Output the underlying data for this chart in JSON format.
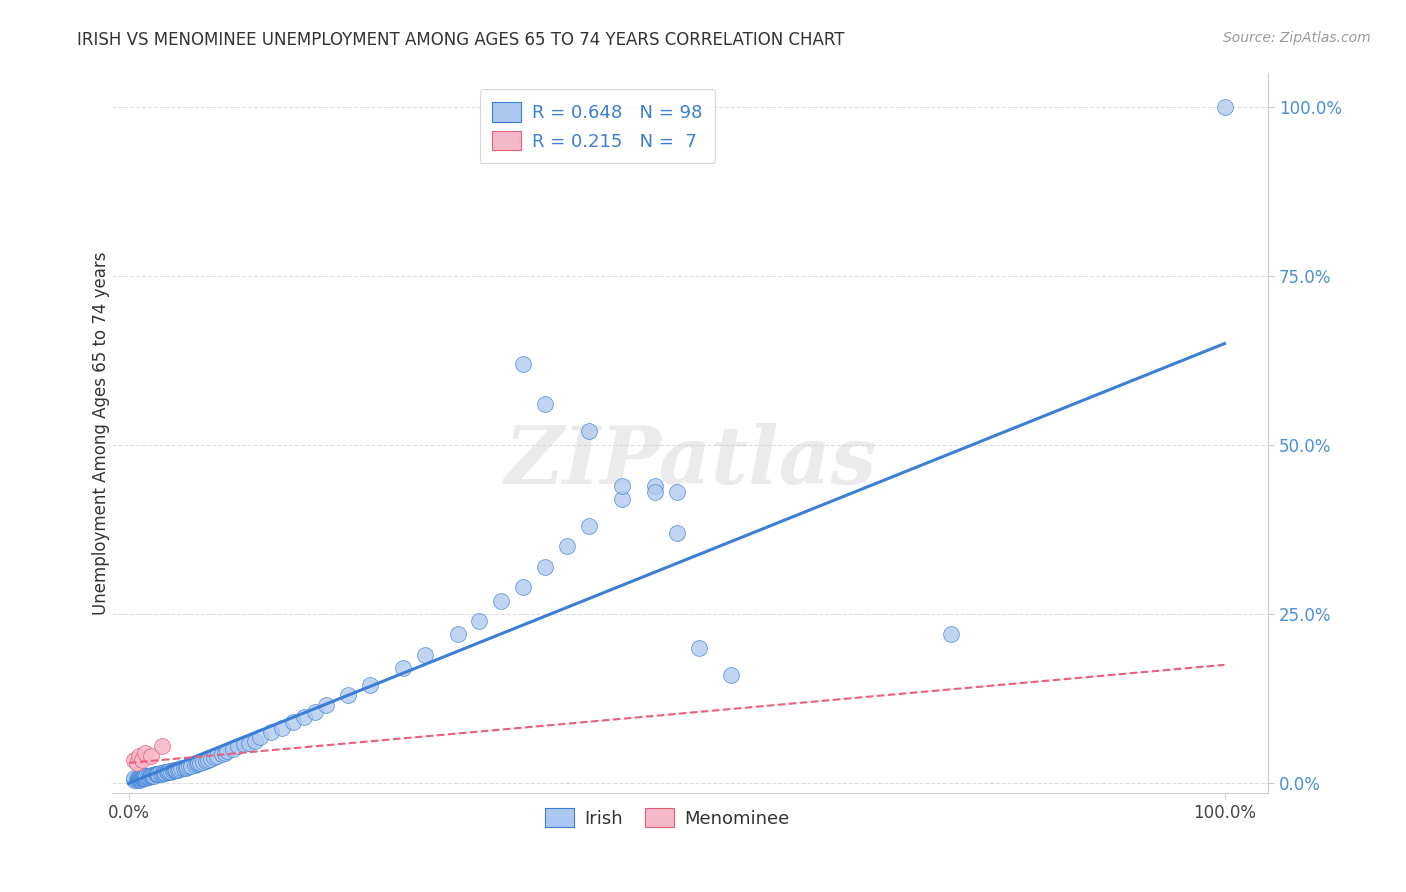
{
  "title": "IRISH VS MENOMINEE UNEMPLOYMENT AMONG AGES 65 TO 74 YEARS CORRELATION CHART",
  "source": "Source: ZipAtlas.com",
  "ylabel": "Unemployment Among Ages 65 to 74 years",
  "irish_R": 0.648,
  "irish_N": 98,
  "menominee_R": 0.215,
  "menominee_N": 7,
  "irish_scatter_color": "#adc8f0",
  "irish_line_color": "#3a7fd5",
  "menominee_scatter_color": "#f5b8c8",
  "menominee_line_color": "#e8607a",
  "watermark_text": "ZIPatlas",
  "background_color": "#ffffff",
  "legend_irish_label": "Irish",
  "legend_menominee_label": "Menominee",
  "irish_x": [
    0.005,
    0.005,
    0.007,
    0.008,
    0.008,
    0.009,
    0.009,
    0.01,
    0.01,
    0.01,
    0.011,
    0.011,
    0.012,
    0.012,
    0.013,
    0.013,
    0.014,
    0.014,
    0.015,
    0.015,
    0.016,
    0.016,
    0.017,
    0.018,
    0.019,
    0.02,
    0.02,
    0.021,
    0.022,
    0.023,
    0.025,
    0.025,
    0.026,
    0.027,
    0.028,
    0.03,
    0.031,
    0.032,
    0.033,
    0.035,
    0.036,
    0.037,
    0.038,
    0.04,
    0.041,
    0.042,
    0.043,
    0.045,
    0.046,
    0.048,
    0.05,
    0.052,
    0.053,
    0.055,
    0.057,
    0.06,
    0.062,
    0.063,
    0.065,
    0.068,
    0.07,
    0.072,
    0.075,
    0.078,
    0.08,
    0.085,
    0.088,
    0.09,
    0.095,
    0.1,
    0.105,
    0.11,
    0.115,
    0.12,
    0.13,
    0.14,
    0.15,
    0.16,
    0.17,
    0.18,
    0.2,
    0.22,
    0.25,
    0.27,
    0.3,
    0.32,
    0.34,
    0.36,
    0.38,
    0.4,
    0.42,
    0.45,
    0.48,
    0.5,
    0.52,
    0.55,
    0.75,
    1.0
  ],
  "irish_y": [
    0.005,
    0.008,
    0.005,
    0.006,
    0.007,
    0.006,
    0.008,
    0.005,
    0.007,
    0.008,
    0.006,
    0.009,
    0.007,
    0.008,
    0.007,
    0.009,
    0.008,
    0.01,
    0.008,
    0.01,
    0.009,
    0.01,
    0.01,
    0.009,
    0.011,
    0.01,
    0.012,
    0.011,
    0.012,
    0.011,
    0.013,
    0.014,
    0.013,
    0.014,
    0.015,
    0.013,
    0.015,
    0.016,
    0.015,
    0.016,
    0.017,
    0.018,
    0.017,
    0.018,
    0.019,
    0.019,
    0.02,
    0.02,
    0.021,
    0.022,
    0.022,
    0.023,
    0.024,
    0.025,
    0.026,
    0.027,
    0.028,
    0.03,
    0.03,
    0.032,
    0.033,
    0.035,
    0.036,
    0.038,
    0.04,
    0.043,
    0.045,
    0.048,
    0.05,
    0.055,
    0.058,
    0.06,
    0.063,
    0.068,
    0.075,
    0.082,
    0.09,
    0.098,
    0.105,
    0.115,
    0.13,
    0.145,
    0.17,
    0.19,
    0.22,
    0.24,
    0.27,
    0.29,
    0.32,
    0.35,
    0.38,
    0.42,
    0.44,
    0.43,
    0.2,
    0.16,
    0.22,
    1.0
  ],
  "irish_outliers_x": [
    0.36,
    0.38,
    0.42,
    0.45,
    0.48,
    0.5
  ],
  "irish_outliers_y": [
    0.62,
    0.56,
    0.52,
    0.44,
    0.43,
    0.37
  ],
  "menominee_x": [
    0.005,
    0.007,
    0.009,
    0.012,
    0.015,
    0.02,
    0.03
  ],
  "menominee_y": [
    0.035,
    0.03,
    0.04,
    0.035,
    0.045,
    0.04,
    0.055
  ],
  "irish_trend_x": [
    0.0,
    1.0
  ],
  "irish_trend_y": [
    0.0,
    0.65
  ],
  "menominee_trend_x": [
    0.0,
    1.0
  ],
  "menominee_trend_y": [
    0.03,
    0.175
  ],
  "xlim": [
    0.0,
    1.0
  ],
  "ylim": [
    0.0,
    1.0
  ],
  "xticks": [
    0.0,
    1.0
  ],
  "xtick_labels": [
    "0.0%",
    "100.0%"
  ],
  "yticks": [
    0.0,
    0.25,
    0.5,
    0.75,
    1.0
  ],
  "ytick_labels": [
    "0.0%",
    "25.0%",
    "50.0%",
    "75.0%",
    "100.0%"
  ],
  "grid_color": "#dddddd",
  "axis_color": "#cccccc"
}
